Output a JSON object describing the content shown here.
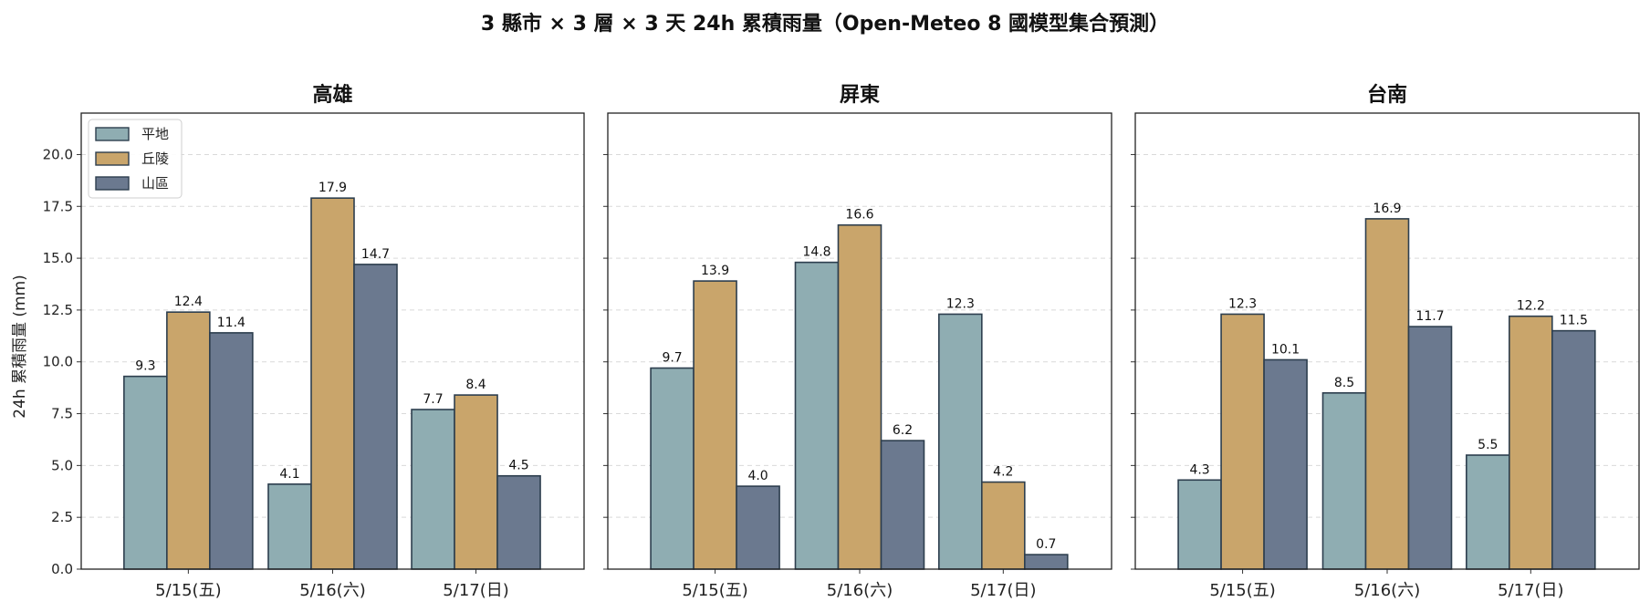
{
  "chart_data": {
    "type": "bar",
    "title": "3 縣市 × 3 層 × 3 天 24h 累積雨量（Open-Meteo 8 國模型集合預測）",
    "ylabel": "24h 累積雨量 (mm)",
    "ylim": [
      0,
      22
    ],
    "yticks": [
      "0.0",
      "2.5",
      "5.0",
      "7.5",
      "10.0",
      "12.5",
      "15.0",
      "17.5",
      "20.0"
    ],
    "categories": [
      "5/15(五)",
      "5/16(六)",
      "5/17(日)"
    ],
    "grid": "y-dashed",
    "legend": "top-left",
    "series_colors": {
      "平地": "#8fadb2",
      "丘陵": "#c9a56b",
      "山區": "#6b798f"
    },
    "panels": [
      {
        "title": "高雄",
        "series": [
          {
            "name": "平地",
            "values": [
              9.3,
              4.1,
              7.7
            ]
          },
          {
            "name": "丘陵",
            "values": [
              12.4,
              17.9,
              8.4
            ]
          },
          {
            "name": "山區",
            "values": [
              11.4,
              14.7,
              4.5
            ]
          }
        ]
      },
      {
        "title": "屏東",
        "series": [
          {
            "name": "平地",
            "values": [
              9.7,
              14.8,
              12.3
            ]
          },
          {
            "name": "丘陵",
            "values": [
              13.9,
              16.6,
              4.2
            ]
          },
          {
            "name": "山區",
            "values": [
              4.0,
              6.2,
              0.7
            ]
          }
        ]
      },
      {
        "title": "台南",
        "series": [
          {
            "name": "平地",
            "values": [
              4.3,
              8.5,
              5.5
            ]
          },
          {
            "name": "丘陵",
            "values": [
              12.3,
              16.9,
              12.2
            ]
          },
          {
            "name": "山區",
            "values": [
              10.1,
              11.7,
              11.5
            ]
          }
        ]
      }
    ]
  }
}
